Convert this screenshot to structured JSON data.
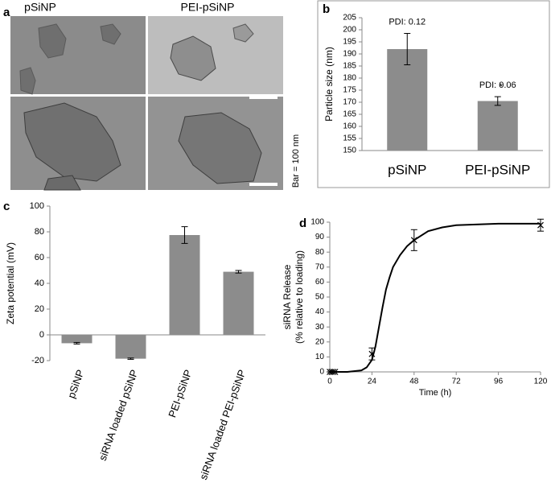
{
  "panel_labels": [
    "a",
    "b",
    "c",
    "d"
  ],
  "images": {
    "column_labels": [
      "pSiNP",
      "PEI-pSiNP"
    ],
    "scale_note": "Bar = 100 nm"
  },
  "chart_data": [
    {
      "type": "bar",
      "ylabel": "Particle size (nm)",
      "categories": [
        "pSiNP",
        "PEI-pSiNP"
      ],
      "values": [
        192,
        170.5
      ],
      "errors": [
        6.5,
        1.8
      ],
      "annotations": [
        "PDI: 0.12",
        "PDI: 0.06",
        "*"
      ],
      "color": "#8c8c8c",
      "ylim": [
        150,
        205
      ],
      "yticks": [
        150,
        155,
        160,
        165,
        170,
        175,
        180,
        185,
        190,
        195,
        200,
        205
      ]
    },
    {
      "type": "bar",
      "ylabel": "Zeta potential (mV)",
      "categories": [
        "pSiNP",
        "siRNA loaded pSiNP",
        "PEI-pSiNP",
        "siRNA loaded PEI-pSiNP"
      ],
      "values": [
        -6.5,
        -18.5,
        77.5,
        49
      ],
      "errors": [
        0.6,
        0.5,
        6.5,
        1
      ],
      "color": "#8c8c8c",
      "ylim": [
        -20,
        100
      ],
      "yticks": [
        -20,
        0,
        20,
        40,
        60,
        80,
        100
      ]
    },
    {
      "type": "line",
      "ylabel": [
        "siRNA Release",
        "(% relative to loading)"
      ],
      "xlabel": "Time (h)",
      "points": {
        "x": [
          0,
          1,
          2,
          3,
          24,
          48,
          120
        ],
        "values": [
          0,
          0,
          0,
          0,
          12,
          88,
          98
        ],
        "errors": [
          0,
          0,
          0,
          0,
          4,
          7,
          4
        ]
      },
      "fit": {
        "x": [
          0,
          10,
          18,
          21,
          24,
          26,
          28,
          30,
          32,
          34,
          36,
          40,
          44,
          48,
          56,
          64,
          72,
          96,
          120
        ],
        "values": [
          0,
          0,
          1,
          3,
          8,
          17,
          30,
          43,
          55,
          63,
          70,
          78,
          84,
          88,
          94,
          96.5,
          98,
          99,
          99
        ]
      },
      "color": "#000000",
      "xlim": [
        0,
        120
      ],
      "xticks": [
        0,
        24,
        48,
        72,
        96,
        120
      ],
      "ylim": [
        0,
        100
      ],
      "yticks": [
        0,
        10,
        20,
        30,
        40,
        50,
        60,
        70,
        80,
        90,
        100
      ]
    }
  ]
}
